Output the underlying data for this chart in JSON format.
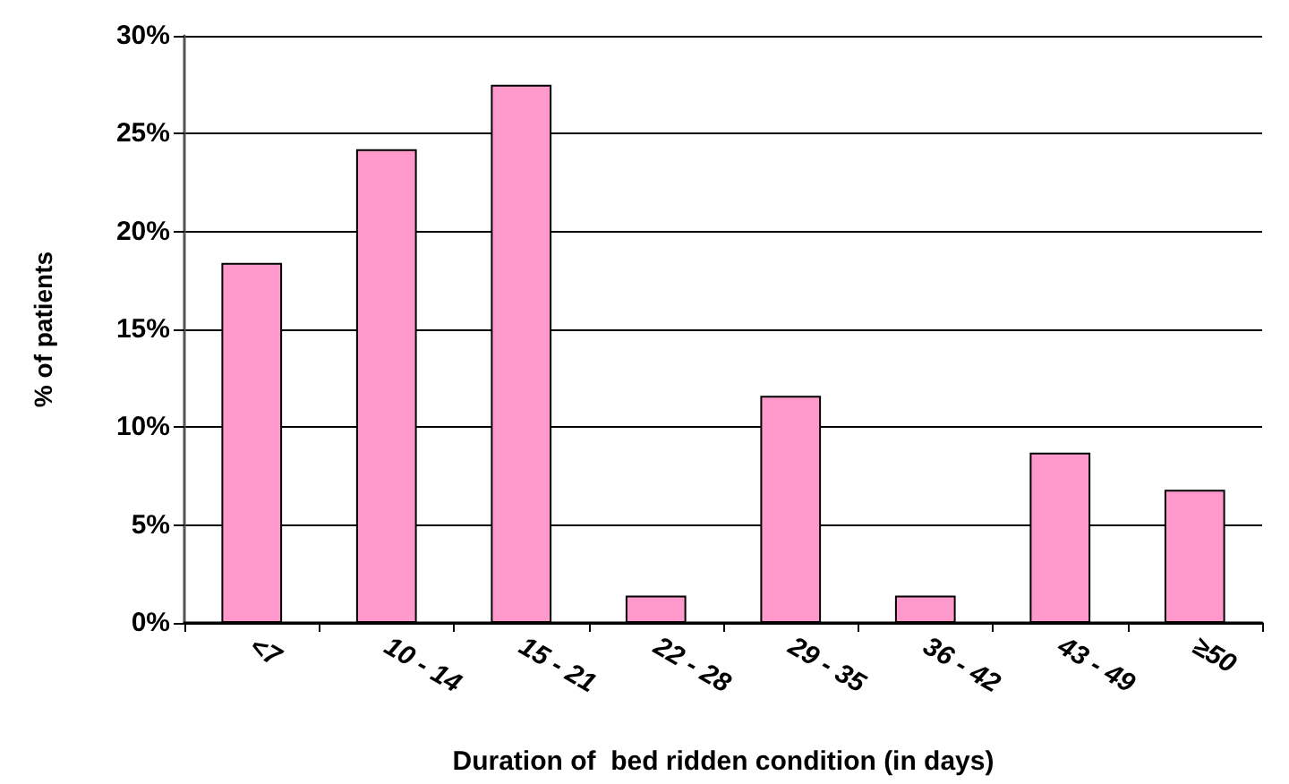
{
  "chart_data": {
    "type": "bar",
    "xlabel": "Duration of  bed ridden condition (in days)",
    "ylabel": "% of patients",
    "categories": [
      "<7",
      "10 - 14",
      "15 - 21",
      "22 - 28",
      "29 - 35",
      "36 - 42",
      "43 - 49",
      "≥50"
    ],
    "values": [
      18.4,
      24.2,
      27.5,
      1.4,
      11.6,
      1.4,
      8.7,
      6.8
    ],
    "color": "#ff99cc",
    "ylim": [
      0,
      30
    ],
    "yticks": [
      {
        "value": 0,
        "label": "0%"
      },
      {
        "value": 5,
        "label": "5%"
      },
      {
        "value": 10,
        "label": "10%"
      },
      {
        "value": 15,
        "label": "15%"
      },
      {
        "value": 20,
        "label": "20%"
      },
      {
        "value": 25,
        "label": "25%"
      },
      {
        "value": 30,
        "label": "30%"
      }
    ],
    "grid": "y"
  }
}
